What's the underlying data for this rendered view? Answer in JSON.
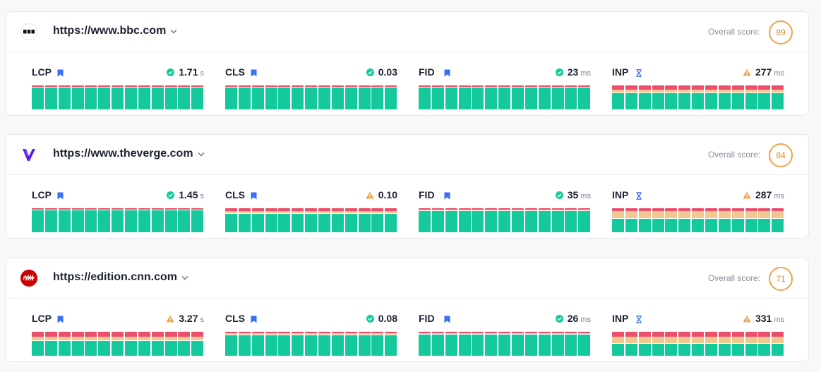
{
  "colors": {
    "good": "#14c99b",
    "needs_improvement": "#f2c891",
    "poor": "#ec4e6b",
    "score_ring": "#f0a24a",
    "flag_blue": "#3b6ff5"
  },
  "overall_label": "Overall score:",
  "sites": [
    {
      "url": "https://www.bbc.com",
      "score": "89",
      "favicon": "bbc-logo",
      "metrics": [
        {
          "label": "LCP",
          "flag": "bookmark-icon",
          "status": "good",
          "value": "1.71",
          "unit": "s",
          "distribution": {
            "poor": 0.06,
            "needs_improvement": 0.0,
            "good": 0.94
          }
        },
        {
          "label": "CLS",
          "flag": "bookmark-icon",
          "status": "good",
          "value": "0.03",
          "unit": "",
          "distribution": {
            "poor": 0.06,
            "needs_improvement": 0.0,
            "good": 0.94
          }
        },
        {
          "label": "FID",
          "flag": "bookmark-icon",
          "status": "good",
          "value": "23",
          "unit": "ms",
          "distribution": {
            "poor": 0.06,
            "needs_improvement": 0.0,
            "good": 0.94
          }
        },
        {
          "label": "INP",
          "flag": "hourglass-icon",
          "status": "warning",
          "value": "277",
          "unit": "ms",
          "distribution": {
            "poor": 0.18,
            "needs_improvement": 0.12,
            "good": 0.7
          }
        }
      ]
    },
    {
      "url": "https://www.theverge.com",
      "score": "84",
      "favicon": "verge-logo",
      "metrics": [
        {
          "label": "LCP",
          "flag": "bookmark-icon",
          "status": "good",
          "value": "1.45",
          "unit": "s",
          "distribution": {
            "poor": 0.06,
            "needs_improvement": 0.0,
            "good": 0.94
          }
        },
        {
          "label": "CLS",
          "flag": "bookmark-icon",
          "status": "warning",
          "value": "0.10",
          "unit": "",
          "distribution": {
            "poor": 0.12,
            "needs_improvement": 0.1,
            "good": 0.78
          }
        },
        {
          "label": "FID",
          "flag": "bookmark-icon",
          "status": "good",
          "value": "35",
          "unit": "ms",
          "distribution": {
            "poor": 0.06,
            "needs_improvement": 0.03,
            "good": 0.91
          }
        },
        {
          "label": "INP",
          "flag": "hourglass-icon",
          "status": "warning",
          "value": "287",
          "unit": "ms",
          "distribution": {
            "poor": 0.12,
            "needs_improvement": 0.28,
            "good": 0.6
          }
        }
      ]
    },
    {
      "url": "https://edition.cnn.com",
      "score": "71",
      "favicon": "cnn-logo",
      "metrics": [
        {
          "label": "LCP",
          "flag": "bookmark-icon",
          "status": "warning",
          "value": "3.27",
          "unit": "s",
          "distribution": {
            "poor": 0.22,
            "needs_improvement": 0.16,
            "good": 0.62
          }
        },
        {
          "label": "CLS",
          "flag": "bookmark-icon",
          "status": "good",
          "value": "0.08",
          "unit": "",
          "distribution": {
            "poor": 0.06,
            "needs_improvement": 0.06,
            "good": 0.88
          }
        },
        {
          "label": "FID",
          "flag": "bookmark-icon",
          "status": "good",
          "value": "26",
          "unit": "ms",
          "distribution": {
            "poor": 0.06,
            "needs_improvement": 0.03,
            "good": 0.91
          }
        },
        {
          "label": "INP",
          "flag": "hourglass-icon",
          "status": "warning",
          "value": "331",
          "unit": "ms",
          "distribution": {
            "poor": 0.22,
            "needs_improvement": 0.26,
            "good": 0.52
          }
        }
      ]
    }
  ]
}
